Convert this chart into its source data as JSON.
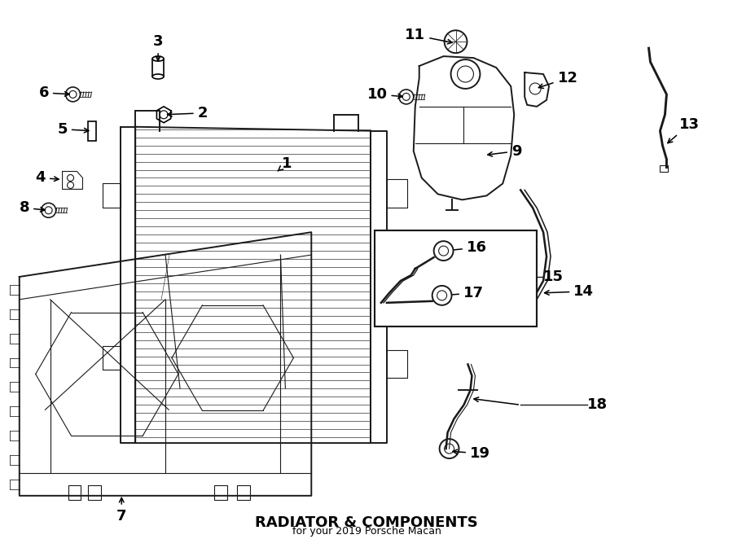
{
  "title": "RADIATOR & COMPONENTS",
  "subtitle": "for your 2019 Porsche Macan",
  "bg_color": "#ffffff",
  "line_color": "#1a1a1a",
  "fig_width": 9.0,
  "fig_height": 6.62,
  "dpi": 100
}
